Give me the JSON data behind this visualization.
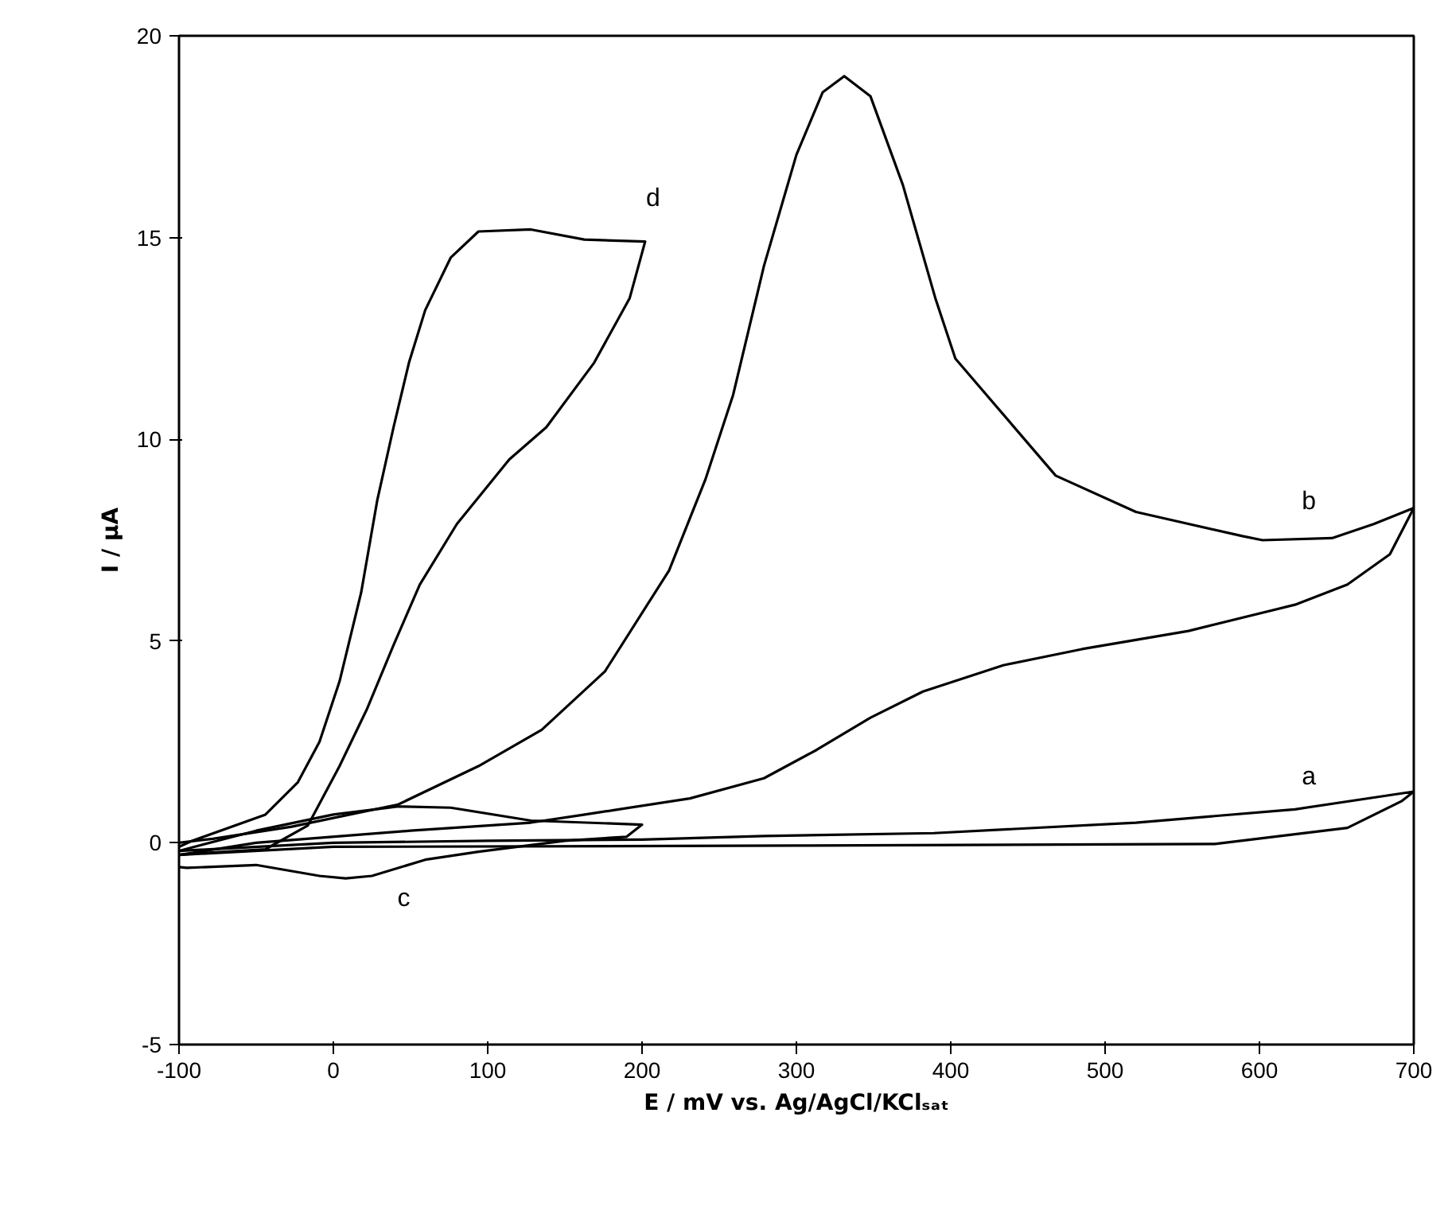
{
  "chart_data": {
    "type": "line",
    "xlabel": "E / mV vs. Ag/AgCl/KClₛₐₜ",
    "ylabel": "I / μA",
    "xlim": [
      -100,
      700
    ],
    "ylim": [
      -5,
      20
    ],
    "xticks": [
      -100,
      0,
      100,
      200,
      300,
      400,
      500,
      600,
      700
    ],
    "yticks": [
      -5,
      0,
      5,
      10,
      15,
      20
    ],
    "grid": false,
    "series": [
      {
        "color": "#000000",
        "x": [
          -100,
          0,
          100,
          200,
          279,
          389,
          520,
          623,
          700,
          692,
          657,
          571,
          300,
          0,
          -100
        ],
        "values": [
          -0.2,
          0.0,
          0.05,
          0.08,
          0.17,
          0.24,
          0.5,
          0.83,
          1.27,
          1.03,
          0.37,
          -0.03,
          -0.07,
          -0.1,
          -0.3
        ]
      },
      {
        "color": "#000000",
        "x": [
          -100,
          -78,
          -27,
          42,
          94,
          135,
          176,
          217.5,
          241,
          259,
          279,
          300,
          317,
          331,
          348,
          369,
          390,
          403,
          468,
          520,
          589,
          602,
          647,
          674,
          700,
          684.5,
          657,
          623,
          554,
          485,
          434,
          382,
          348,
          313,
          279,
          231,
          163,
          128,
          50,
          -50,
          -100
        ],
        "values": [
          0.0,
          0.1,
          0.4,
          0.95,
          1.9,
          2.8,
          4.25,
          6.75,
          9.0,
          11.1,
          14.3,
          17.05,
          18.6,
          19.0,
          18.5,
          16.3,
          13.5,
          12.0,
          9.1,
          8.2,
          7.6,
          7.5,
          7.55,
          7.9,
          8.3,
          7.15,
          6.4,
          5.9,
          5.25,
          4.8,
          4.4,
          3.75,
          3.1,
          2.3,
          1.6,
          1.1,
          0.7,
          0.5,
          0.3,
          0.0,
          -0.3
        ]
      },
      {
        "color": "#000000",
        "x": [
          -100,
          -50,
          0,
          42,
          76,
          128,
          200,
          190,
          150,
          94,
          59.5,
          25,
          8,
          -9,
          -50,
          -95,
          -100
        ],
        "values": [
          -0.2,
          0.3,
          0.7,
          0.9,
          0.87,
          0.55,
          0.45,
          0.15,
          0.05,
          -0.22,
          -0.42,
          -0.82,
          -0.88,
          -0.82,
          -0.55,
          -0.62,
          -0.6
        ]
      },
      {
        "color": "#000000",
        "x": [
          -100,
          -92,
          -44,
          -23,
          -9,
          4,
          18,
          28.5,
          39,
          49,
          59.5,
          76,
          94,
          128,
          162.6,
          202,
          192,
          169,
          138,
          114,
          80,
          56,
          39,
          21.6,
          4,
          -16.5,
          -44,
          -92,
          -100
        ],
        "values": [
          -0.1,
          0.04,
          0.7,
          1.5,
          2.5,
          4.0,
          6.2,
          8.5,
          10.3,
          11.9,
          13.2,
          14.5,
          15.15,
          15.2,
          14.95,
          14.9,
          13.5,
          11.9,
          10.3,
          9.5,
          7.9,
          6.4,
          4.9,
          3.3,
          1.9,
          0.43,
          -0.16,
          -0.27,
          -0.3
        ]
      }
    ],
    "annotations": [
      "a",
      "b",
      "c",
      "d"
    ]
  }
}
